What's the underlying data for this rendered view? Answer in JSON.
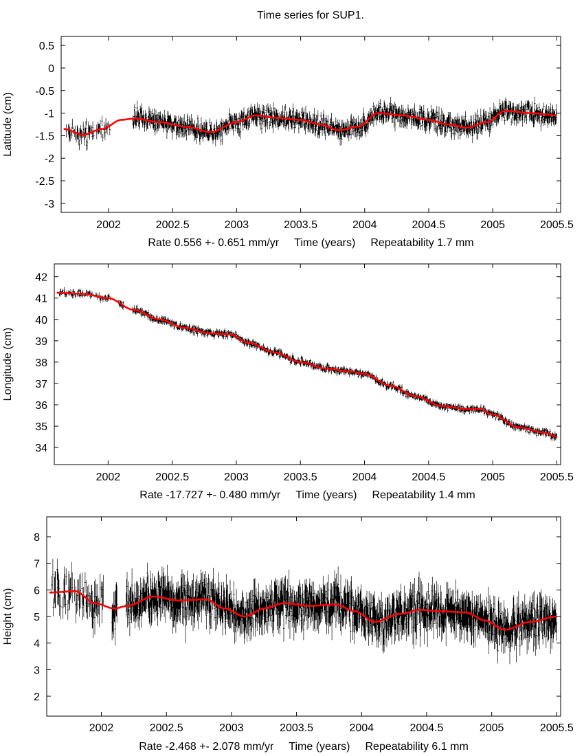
{
  "page": {
    "title": "Time series for SUP1."
  },
  "colors": {
    "data": "#000000",
    "fit": "#ff0000",
    "frame": "#000000"
  },
  "chart_data": [
    {
      "type": "scatter",
      "title": "Time series for SUP1.",
      "ylabel": "Latitude (cm)",
      "xlabel": "Time (years)",
      "rate_text": "Rate 0.556 +- 0.651 mm/yr",
      "repeat_text": "Repeatability 1.7 mm",
      "xlim": [
        2001.63,
        2005.53
      ],
      "ylim": [
        -3.2,
        0.7
      ],
      "xticks": [
        2002,
        2002.5,
        2003,
        2003.5,
        2004,
        2004.5,
        2005,
        2005.5
      ],
      "xtick_labels": [
        "2002",
        "2002.5",
        "2003",
        "2003.5",
        "2004",
        "2004.5",
        "2005",
        "2005.5"
      ],
      "yticks": [
        0.5,
        0,
        -0.5,
        -1,
        -1.5,
        -2,
        -2.5,
        -3
      ],
      "ytick_labels": [
        "0.5",
        "0",
        "-0.5",
        "-1",
        "-1.5",
        "-2",
        "-2.5",
        "-3"
      ],
      "gaps": [
        [
          2002.02,
          2002.19
        ]
      ],
      "series": [
        {
          "name": "observations",
          "kind": "points with error bars",
          "noise": 0.16,
          "error_bar": 0.12
        },
        {
          "name": "fit",
          "kind": "red line",
          "x": [
            2001.65,
            2001.8,
            2001.95,
            2002.1,
            2002.2,
            2002.4,
            2002.6,
            2002.8,
            2003.0,
            2003.15,
            2003.3,
            2003.5,
            2003.65,
            2003.8,
            2003.95,
            2004.1,
            2004.3,
            2004.5,
            2004.65,
            2004.8,
            2004.95,
            2005.1,
            2005.3,
            2005.5
          ],
          "y": [
            -1.35,
            -1.48,
            -1.35,
            -1.15,
            -1.12,
            -1.2,
            -1.3,
            -1.42,
            -1.2,
            -1.05,
            -1.1,
            -1.15,
            -1.25,
            -1.38,
            -1.3,
            -1.0,
            -1.05,
            -1.15,
            -1.25,
            -1.32,
            -1.2,
            -0.95,
            -1.0,
            -1.05
          ]
        }
      ]
    },
    {
      "type": "scatter",
      "ylabel": "Longitude (cm)",
      "xlabel": "Time (years)",
      "rate_text": "Rate -17.727 +- 0.480 mm/yr",
      "repeat_text": "Repeatability 1.4 mm",
      "xlim": [
        2001.58,
        2005.53
      ],
      "ylim": [
        33.2,
        42.6
      ],
      "xticks": [
        2002,
        2002.5,
        2003,
        2003.5,
        2004,
        2004.5,
        2005,
        2005.5
      ],
      "xtick_labels": [
        "2002",
        "2002.5",
        "2003",
        "2003.5",
        "2004",
        "2004.5",
        "2005",
        "2005.5"
      ],
      "yticks": [
        42,
        41,
        40,
        39,
        38,
        37,
        36,
        35,
        34
      ],
      "ytick_labels": [
        "42",
        "41",
        "40",
        "39",
        "38",
        "37",
        "36",
        "35",
        "34"
      ],
      "gaps": [
        [
          2002.02,
          2002.08
        ],
        [
          2002.12,
          2002.19
        ]
      ],
      "series": [
        {
          "name": "observations",
          "kind": "points with error bars",
          "noise": 0.12,
          "error_bar": 0.1
        },
        {
          "name": "fit",
          "kind": "red line",
          "x": [
            2001.6,
            2001.8,
            2002.0,
            2002.2,
            2002.4,
            2002.6,
            2002.8,
            2002.95,
            2003.1,
            2003.3,
            2003.5,
            2003.7,
            2003.9,
            2004.0,
            2004.2,
            2004.4,
            2004.6,
            2004.8,
            2004.9,
            2005.0,
            2005.2,
            2005.4,
            2005.5
          ],
          "y": [
            41.25,
            41.2,
            41.0,
            40.45,
            40.0,
            39.6,
            39.35,
            39.3,
            38.9,
            38.45,
            38.0,
            37.7,
            37.55,
            37.45,
            36.9,
            36.4,
            35.95,
            35.8,
            35.8,
            35.55,
            34.95,
            34.7,
            34.5
          ]
        }
      ]
    },
    {
      "type": "scatter",
      "ylabel": "Height (cm)",
      "xlabel": "Time (years)",
      "rate_text": "Rate -2.468 +- 2.078 mm/yr",
      "repeat_text": "Repeatability 6.1 mm",
      "xlim": [
        2001.58,
        2005.53
      ],
      "ylim": [
        1.25,
        8.75
      ],
      "xticks": [
        2002,
        2002.5,
        2003,
        2003.5,
        2004,
        2004.5,
        2005,
        2005.5
      ],
      "xtick_labels": [
        "2002",
        "2002.5",
        "2003",
        "2003.5",
        "2004",
        "2004.5",
        "2005",
        "2005.5"
      ],
      "yticks": [
        8,
        7,
        6,
        5,
        4,
        3,
        2
      ],
      "ytick_labels": [
        "8",
        "7",
        "6",
        "5",
        "4",
        "3",
        "2"
      ],
      "gaps": [
        [
          2002.02,
          2002.08
        ],
        [
          2002.12,
          2002.19
        ]
      ],
      "series": [
        {
          "name": "observations",
          "kind": "points with error bars",
          "noise": 0.55,
          "error_bar": 0.5
        },
        {
          "name": "fit",
          "kind": "red line",
          "x": [
            2001.6,
            2001.8,
            2001.95,
            2002.1,
            2002.2,
            2002.4,
            2002.6,
            2002.8,
            2002.95,
            2003.1,
            2003.25,
            2003.4,
            2003.6,
            2003.8,
            2003.95,
            2004.1,
            2004.3,
            2004.45,
            2004.6,
            2004.8,
            2004.95,
            2005.1,
            2005.3,
            2005.5
          ],
          "y": [
            5.9,
            5.95,
            5.5,
            5.3,
            5.4,
            5.75,
            5.6,
            5.65,
            5.3,
            5.0,
            5.3,
            5.5,
            5.4,
            5.45,
            5.2,
            4.8,
            5.1,
            5.25,
            5.2,
            5.15,
            4.85,
            4.5,
            4.8,
            5.0
          ]
        }
      ]
    }
  ]
}
